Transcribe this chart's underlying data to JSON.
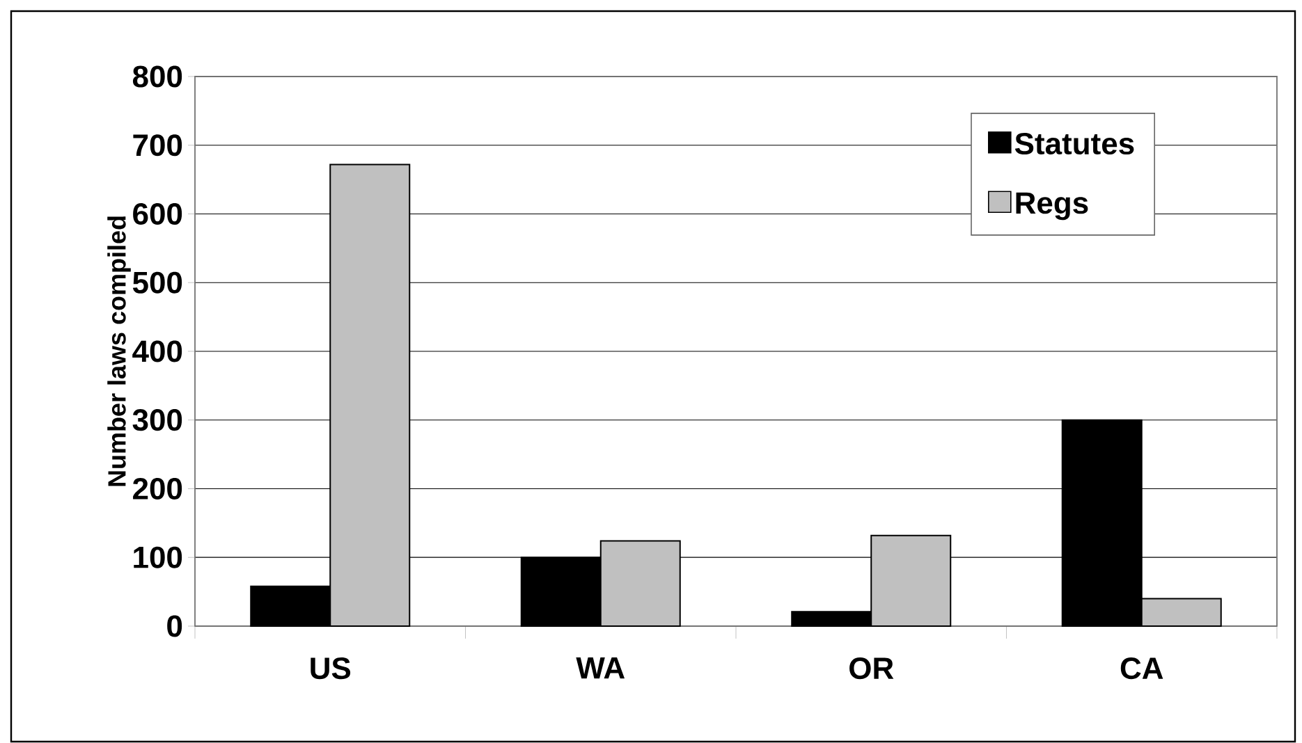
{
  "chart_data": {
    "type": "bar",
    "ylabel": "Number laws compiled",
    "categories": [
      "US",
      "WA",
      "OR",
      "CA"
    ],
    "series": [
      {
        "name": "Statutes",
        "color": "#000000",
        "values": [
          58,
          100,
          21,
          300
        ]
      },
      {
        "name": "Regs",
        "color": "#c0c0c0",
        "values": [
          672,
          124,
          132,
          40
        ]
      }
    ],
    "ylim": [
      0,
      800
    ],
    "yticks": [
      0,
      100,
      200,
      300,
      400,
      500,
      600,
      700,
      800
    ],
    "grid": "y",
    "legend": "top right"
  }
}
